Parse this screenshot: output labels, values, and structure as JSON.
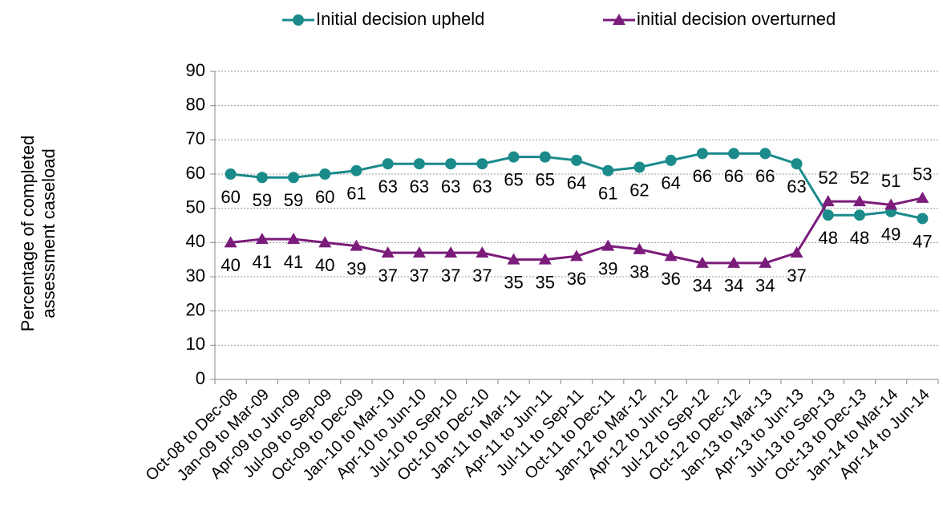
{
  "chart_data": {
    "type": "line",
    "y_label": "Percentage of completed assessment caseload",
    "categories": [
      "Oct-08 to Dec-08",
      "Jan-09 to Mar-09",
      "Apr-09 to Jun-09",
      "Jul-09 to Sep-09",
      "Oct-09 to Dec-09",
      "Jan-10 to Mar-10",
      "Apr-10 to Jun-10",
      "Jul-10 to Sep-10",
      "Oct-10 to Dec-10",
      "Jan-11 to Mar-11",
      "Apr-11 to Jun-11",
      "Jul-11 to Sep-11",
      "Oct-11 to Dec-11",
      "Jan-12 to Mar-12",
      "Apr-12 to Jun-12",
      "Jul-12 to Sep-12",
      "Oct-12 to Dec-12",
      "Jan-13 to Mar-13",
      "Apr-13 to Jun-13",
      "Jul-13 to Sep-13",
      "Oct-13 to Dec-13",
      "Jan-14 to Mar-14",
      "Apr-14 to Jun-14"
    ],
    "series": [
      {
        "name": "Initial decision upheld",
        "color": "#1b8a8a",
        "marker": "circle",
        "values": [
          60,
          59,
          59,
          60,
          61,
          63,
          63,
          63,
          63,
          65,
          65,
          64,
          61,
          62,
          64,
          66,
          66,
          66,
          63,
          48,
          48,
          49,
          47
        ]
      },
      {
        "name": "initial decision overturned",
        "color": "#7b1c7b",
        "marker": "triangle",
        "values": [
          40,
          41,
          41,
          40,
          39,
          37,
          37,
          37,
          37,
          35,
          35,
          36,
          39,
          38,
          36,
          34,
          34,
          34,
          37,
          52,
          52,
          51,
          53
        ]
      }
    ],
    "ylim": [
      0,
      90
    ],
    "yticks": [
      0,
      10,
      20,
      30,
      40,
      50,
      60,
      70,
      80,
      90
    ],
    "grid": true,
    "legend": "top"
  }
}
